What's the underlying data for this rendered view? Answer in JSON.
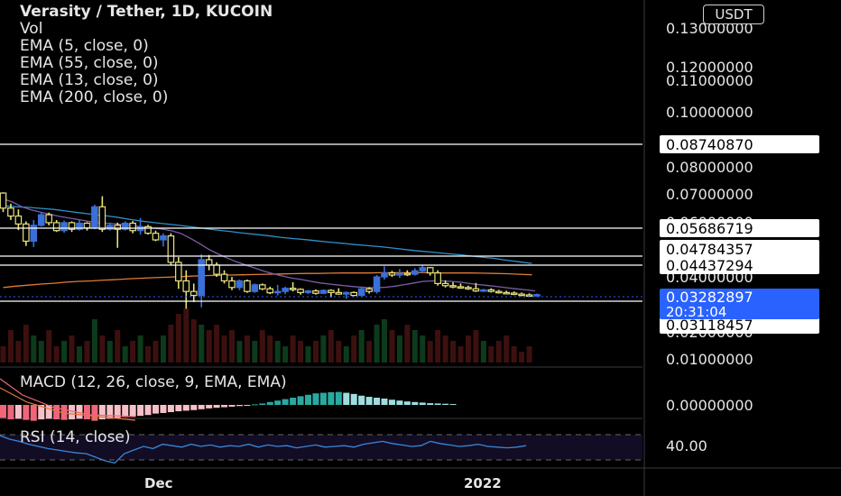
{
  "header": {
    "symbol_line": "Verasity / Tether, 1D, KUCOIN",
    "indicators": [
      "Vol",
      "EMA (5, close, 0)",
      "EMA (55, close, 0)",
      "EMA (13, close, 0)",
      "EMA (200, close, 0)"
    ]
  },
  "currency_button": "USDT",
  "macd_label": "MACD (12, 26, close, 9, EMA, EMA)",
  "rsi_label": "RSI (14, close)",
  "time_labels": [
    "Dec",
    "2022"
  ],
  "colors": {
    "background": "#000000",
    "up_candle": "#3b6fd9",
    "down_candle": "#e8e27a",
    "ema_blue": "#2f8fc8",
    "ema_orange": "#e07b39",
    "ema_purple": "#7b5ea7",
    "macd_pos": "#2aa9a0",
    "macd_pos_light": "#9fdde0",
    "macd_neg": "#f0657a",
    "macd_neg_light": "#f7c0c8",
    "current_price_bg": "#2962ff",
    "rsi_line": "#3a86d8"
  },
  "chart_data": {
    "type": "candlestick",
    "y_axis_ticks": [
      "0.13000000",
      "0.12000000",
      "0.11000000",
      "0.10000000",
      "0.08000000",
      "0.07000000",
      "0.06000000",
      "0.04000000",
      "0.02000000",
      "0.01000000"
    ],
    "y_range": [
      0.0085,
      0.1336
    ],
    "horizontal_levels": [
      "0.08740870",
      "0.05686719",
      "0.04784357",
      "0.04437294",
      "0.03118457"
    ],
    "current_price": "0.03282897",
    "countdown": "20:31:04",
    "macd_axis_label": "0.00000000",
    "rsi_axis_label": "40.00",
    "candles": [
      {
        "o": 0.0712,
        "h": 0.0715,
        "l": 0.064,
        "c": 0.0655
      },
      {
        "o": 0.0655,
        "h": 0.0672,
        "l": 0.061,
        "c": 0.0625
      },
      {
        "o": 0.0625,
        "h": 0.065,
        "l": 0.0572,
        "c": 0.0595
      },
      {
        "o": 0.0595,
        "h": 0.0605,
        "l": 0.0512,
        "c": 0.053
      },
      {
        "o": 0.053,
        "h": 0.061,
        "l": 0.0508,
        "c": 0.059
      },
      {
        "o": 0.059,
        "h": 0.064,
        "l": 0.0585,
        "c": 0.063
      },
      {
        "o": 0.063,
        "h": 0.0638,
        "l": 0.059,
        "c": 0.06
      },
      {
        "o": 0.06,
        "h": 0.061,
        "l": 0.0565,
        "c": 0.057
      },
      {
        "o": 0.057,
        "h": 0.0608,
        "l": 0.0562,
        "c": 0.06
      },
      {
        "o": 0.06,
        "h": 0.0605,
        "l": 0.0565,
        "c": 0.0575
      },
      {
        "o": 0.0575,
        "h": 0.061,
        "l": 0.057,
        "c": 0.0598
      },
      {
        "o": 0.0598,
        "h": 0.0602,
        "l": 0.057,
        "c": 0.058
      },
      {
        "o": 0.058,
        "h": 0.0668,
        "l": 0.0575,
        "c": 0.066
      },
      {
        "o": 0.066,
        "h": 0.07,
        "l": 0.0565,
        "c": 0.0575
      },
      {
        "o": 0.0575,
        "h": 0.06,
        "l": 0.057,
        "c": 0.059
      },
      {
        "o": 0.059,
        "h": 0.06,
        "l": 0.0505,
        "c": 0.0575
      },
      {
        "o": 0.0575,
        "h": 0.0605,
        "l": 0.057,
        "c": 0.0598
      },
      {
        "o": 0.0598,
        "h": 0.0606,
        "l": 0.056,
        "c": 0.057
      },
      {
        "o": 0.057,
        "h": 0.0618,
        "l": 0.0555,
        "c": 0.0585
      },
      {
        "o": 0.0585,
        "h": 0.0592,
        "l": 0.0555,
        "c": 0.056
      },
      {
        "o": 0.056,
        "h": 0.057,
        "l": 0.053,
        "c": 0.0535
      },
      {
        "o": 0.0535,
        "h": 0.056,
        "l": 0.051,
        "c": 0.055
      },
      {
        "o": 0.055,
        "h": 0.056,
        "l": 0.044,
        "c": 0.045
      },
      {
        "o": 0.045,
        "h": 0.047,
        "l": 0.035,
        "c": 0.038
      },
      {
        "o": 0.038,
        "h": 0.042,
        "l": 0.0275,
        "c": 0.034
      },
      {
        "o": 0.034,
        "h": 0.037,
        "l": 0.03,
        "c": 0.0325
      },
      {
        "o": 0.0325,
        "h": 0.048,
        "l": 0.028,
        "c": 0.046
      },
      {
        "o": 0.046,
        "h": 0.0478,
        "l": 0.042,
        "c": 0.044
      },
      {
        "o": 0.044,
        "h": 0.045,
        "l": 0.0395,
        "c": 0.0405
      },
      {
        "o": 0.0405,
        "h": 0.042,
        "l": 0.037,
        "c": 0.038
      },
      {
        "o": 0.038,
        "h": 0.0395,
        "l": 0.0345,
        "c": 0.0355
      },
      {
        "o": 0.0355,
        "h": 0.0385,
        "l": 0.0345,
        "c": 0.038
      },
      {
        "o": 0.038,
        "h": 0.0385,
        "l": 0.0335,
        "c": 0.034
      },
      {
        "o": 0.034,
        "h": 0.037,
        "l": 0.0335,
        "c": 0.0365
      },
      {
        "o": 0.0365,
        "h": 0.037,
        "l": 0.0345,
        "c": 0.035
      },
      {
        "o": 0.035,
        "h": 0.0358,
        "l": 0.033,
        "c": 0.0335
      },
      {
        "o": 0.0335,
        "h": 0.0365,
        "l": 0.0325,
        "c": 0.034
      },
      {
        "o": 0.034,
        "h": 0.0358,
        "l": 0.033,
        "c": 0.0352
      },
      {
        "o": 0.0352,
        "h": 0.0375,
        "l": 0.034,
        "c": 0.0348
      },
      {
        "o": 0.0348,
        "h": 0.0352,
        "l": 0.0328,
        "c": 0.0336
      },
      {
        "o": 0.0336,
        "h": 0.0346,
        "l": 0.033,
        "c": 0.0342
      },
      {
        "o": 0.0342,
        "h": 0.0348,
        "l": 0.0328,
        "c": 0.0333
      },
      {
        "o": 0.0333,
        "h": 0.0348,
        "l": 0.033,
        "c": 0.0344
      },
      {
        "o": 0.0344,
        "h": 0.0348,
        "l": 0.0318,
        "c": 0.0336
      },
      {
        "o": 0.0336,
        "h": 0.0352,
        "l": 0.0328,
        "c": 0.033
      },
      {
        "o": 0.033,
        "h": 0.034,
        "l": 0.0312,
        "c": 0.0336
      },
      {
        "o": 0.0336,
        "h": 0.034,
        "l": 0.0322,
        "c": 0.0325
      },
      {
        "o": 0.0325,
        "h": 0.0358,
        "l": 0.0322,
        "c": 0.035
      },
      {
        "o": 0.035,
        "h": 0.0356,
        "l": 0.0332,
        "c": 0.034
      },
      {
        "o": 0.034,
        "h": 0.0402,
        "l": 0.0332,
        "c": 0.0395
      },
      {
        "o": 0.0395,
        "h": 0.0435,
        "l": 0.0385,
        "c": 0.041
      },
      {
        "o": 0.041,
        "h": 0.0418,
        "l": 0.0395,
        "c": 0.0402
      },
      {
        "o": 0.0402,
        "h": 0.0425,
        "l": 0.0392,
        "c": 0.0408
      },
      {
        "o": 0.0408,
        "h": 0.042,
        "l": 0.0398,
        "c": 0.0405
      },
      {
        "o": 0.0405,
        "h": 0.0428,
        "l": 0.04,
        "c": 0.0418
      },
      {
        "o": 0.0418,
        "h": 0.044,
        "l": 0.041,
        "c": 0.043
      },
      {
        "o": 0.043,
        "h": 0.0432,
        "l": 0.04,
        "c": 0.041
      },
      {
        "o": 0.041,
        "h": 0.042,
        "l": 0.0362,
        "c": 0.037
      },
      {
        "o": 0.037,
        "h": 0.0382,
        "l": 0.0355,
        "c": 0.0362
      },
      {
        "o": 0.0362,
        "h": 0.0375,
        "l": 0.0352,
        "c": 0.0358
      },
      {
        "o": 0.0358,
        "h": 0.037,
        "l": 0.035,
        "c": 0.0355
      },
      {
        "o": 0.0355,
        "h": 0.0362,
        "l": 0.0346,
        "c": 0.035
      },
      {
        "o": 0.035,
        "h": 0.0372,
        "l": 0.0338,
        "c": 0.0342
      },
      {
        "o": 0.0342,
        "h": 0.035,
        "l": 0.0338,
        "c": 0.0346
      },
      {
        "o": 0.0346,
        "h": 0.0352,
        "l": 0.0336,
        "c": 0.034
      },
      {
        "o": 0.034,
        "h": 0.0346,
        "l": 0.0332,
        "c": 0.0336
      },
      {
        "o": 0.0336,
        "h": 0.0343,
        "l": 0.033,
        "c": 0.0334
      },
      {
        "o": 0.0334,
        "h": 0.034,
        "l": 0.0326,
        "c": 0.033
      },
      {
        "o": 0.033,
        "h": 0.0336,
        "l": 0.0322,
        "c": 0.0327
      },
      {
        "o": 0.0327,
        "h": 0.0333,
        "l": 0.032,
        "c": 0.0324
      },
      {
        "o": 0.0324,
        "h": 0.0332,
        "l": 0.032,
        "c": 0.0328
      }
    ],
    "ema_lines": [
      {
        "name": "EMA (55, close, 0)",
        "color": "#2f8fc8",
        "values": [
          0.0664,
          0.066,
          0.0658,
          0.0654,
          0.065,
          0.0644,
          0.0638,
          0.0632,
          0.0627,
          0.0621,
          0.0613,
          0.0606,
          0.06,
          0.0595,
          0.059,
          0.0584,
          0.0578,
          0.0572,
          0.0567,
          0.0561,
          0.0556,
          0.0551,
          0.0545,
          0.054,
          0.0536,
          0.0531,
          0.0526,
          0.0522,
          0.0517,
          0.0513,
          0.0509,
          0.0504,
          0.0498,
          0.0493,
          0.0489,
          0.0484,
          0.048,
          0.0475,
          0.047,
          0.0465,
          0.0458,
          0.0452,
          0.0446
        ]
      },
      {
        "name": "EMA (200, close, 0)",
        "color": "#e07b39",
        "values": [
          0.0355,
          0.036,
          0.0364,
          0.0368,
          0.0371,
          0.0375,
          0.0378,
          0.038,
          0.0383,
          0.0385,
          0.0388,
          0.039,
          0.0392,
          0.0394,
          0.0396,
          0.0398,
          0.04,
          0.0401,
          0.0402,
          0.0403,
          0.0404,
          0.0405,
          0.0406,
          0.0407,
          0.0408,
          0.0408,
          0.0409,
          0.041,
          0.041,
          0.041,
          0.0411,
          0.0411,
          0.0411,
          0.0411,
          0.0411,
          0.041,
          0.041,
          0.041,
          0.0409,
          0.0408,
          0.0407,
          0.0405,
          0.0403
        ]
      },
      {
        "name": "EMA (13, close, 0)",
        "color": "#7b5ea7",
        "values": [
          0.069,
          0.0678,
          0.066,
          0.0648,
          0.064,
          0.0632,
          0.0624,
          0.0618,
          0.0612,
          0.0606,
          0.06,
          0.0598,
          0.0596,
          0.0592,
          0.0588,
          0.0584,
          0.058,
          0.0576,
          0.057,
          0.056,
          0.0542,
          0.0522,
          0.05,
          0.0482,
          0.0466,
          0.0452,
          0.044,
          0.0428,
          0.0416,
          0.0406,
          0.0398,
          0.039,
          0.0385,
          0.0378,
          0.0372,
          0.0368,
          0.0364,
          0.036,
          0.0357,
          0.0355,
          0.0354,
          0.0356,
          0.036,
          0.0366,
          0.0372,
          0.0378,
          0.038,
          0.038,
          0.0378,
          0.0375,
          0.037,
          0.0366,
          0.0362,
          0.0358,
          0.0354,
          0.035,
          0.0346,
          0.0342
        ]
      }
    ],
    "volume": [
      0.3,
      0.6,
      0.4,
      0.7,
      0.5,
      0.4,
      0.6,
      0.3,
      0.4,
      0.5,
      0.3,
      0.4,
      0.8,
      0.5,
      0.4,
      0.6,
      0.3,
      0.4,
      0.5,
      0.3,
      0.4,
      0.5,
      0.7,
      0.9,
      1.0,
      0.8,
      0.7,
      0.6,
      0.7,
      0.5,
      0.6,
      0.4,
      0.5,
      0.4,
      0.6,
      0.5,
      0.4,
      0.3,
      0.5,
      0.4,
      0.3,
      0.4,
      0.5,
      0.6,
      0.4,
      0.3,
      0.5,
      0.6,
      0.4,
      0.7,
      0.8,
      0.6,
      0.5,
      0.7,
      0.6,
      0.5,
      0.4,
      0.6,
      0.5,
      0.4,
      0.3,
      0.5,
      0.6,
      0.4,
      0.3,
      0.4,
      0.5,
      0.3,
      0.2,
      0.3
    ],
    "macd_hist": [
      -0.45,
      -0.5,
      -0.48,
      -0.52,
      -0.55,
      -0.5,
      -0.48,
      -0.5,
      -0.52,
      -0.5,
      -0.48,
      -0.5,
      -0.55,
      -0.5,
      -0.48,
      -0.45,
      -0.42,
      -0.4,
      -0.38,
      -0.35,
      -0.3,
      -0.28,
      -0.25,
      -0.22,
      -0.2,
      -0.18,
      -0.15,
      -0.12,
      -0.1,
      -0.08,
      -0.06,
      -0.04,
      -0.02,
      0.02,
      0.05,
      0.1,
      0.15,
      0.2,
      0.25,
      0.3,
      0.35,
      0.4,
      0.42,
      0.44,
      0.45,
      0.42,
      0.38,
      0.32,
      0.28,
      0.25,
      0.22,
      0.18,
      0.15,
      0.12,
      0.1,
      0.08,
      0.06,
      0.05,
      0.04,
      0.03
    ],
    "rsi": [
      60,
      55,
      52,
      48,
      45,
      42,
      40,
      38,
      36,
      35,
      30,
      25,
      22,
      35,
      40,
      45,
      42,
      48,
      46,
      44,
      48,
      45,
      47,
      44,
      46,
      45,
      48,
      44,
      47,
      45,
      46,
      43,
      45,
      47,
      44,
      45,
      46,
      44,
      48,
      50,
      52,
      49,
      47,
      45,
      46,
      52,
      49,
      47,
      45,
      46,
      48,
      45,
      44,
      43,
      44,
      46
    ]
  }
}
